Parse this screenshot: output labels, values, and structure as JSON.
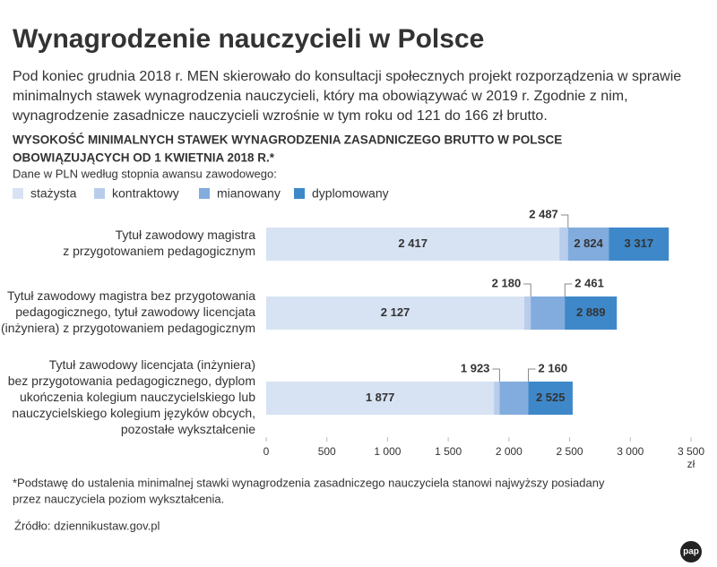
{
  "chart_data": {
    "type": "overlap-bar",
    "title": "Wynagrodzenie nauczycieli w Polsce",
    "intro": [
      "Pod koniec grudnia 2018 r. MEN skierowało do konsultacji społecznych projekt rozporządzenia w sprawie",
      "minimalnych stawek wynagrodzenia nauczycieli, który ma obowiązywać w 2019 r. Zgodnie z nim,",
      "wynagrodzenie zasadnicze nauczycieli wzrośnie w tym roku od 121 do 166 zł brutto."
    ],
    "subtitle": [
      "WYSOKOŚĆ MINIMALNYCH STAWEK WYNAGRODZENIA ZASADNICZEGO BRUTTO W POLSCE",
      "OBOWIĄZUJĄCYCH OD 1 KWIETNIA 2018 R.*"
    ],
    "note": "Dane w PLN według stopnia awansu zawodowego:",
    "categories": [
      [
        "Tytuł zawodowy magistra",
        "z przygotowaniem pedagogicznym"
      ],
      [
        "Tytuł zawodowy magistra bez przygotowania",
        "pedagogicznego, tytuł zawodowy licencjata",
        "(inżyniera) z przygotowaniem pedagogicznym"
      ],
      [
        "Tytuł zawodowy licencjata (inżyniera)",
        "bez przygotowania pedagogicznego, dyplom",
        "ukończenia kolegium nauczycielskiego lub",
        "nauczycielskiego kolegium języków obcych,",
        "pozostałe wykształcenie"
      ]
    ],
    "series": [
      {
        "name": "stażysta",
        "color": "#d7e3f3",
        "values": [
          2417,
          2127,
          1877
        ],
        "value_labels": [
          "2 417",
          "2 127",
          "1 877"
        ]
      },
      {
        "name": "kontraktowy",
        "color": "#b8cdeb",
        "values": [
          2487,
          2180,
          1923
        ],
        "value_labels": [
          "2 487",
          "2 180",
          "1 923"
        ]
      },
      {
        "name": "mianowany",
        "color": "#82acdd",
        "values": [
          2824,
          2461,
          2160
        ],
        "value_labels": [
          "2 824",
          "2 461",
          "2 160"
        ]
      },
      {
        "name": "dyplomowany",
        "color": "#3e88c9",
        "values": [
          3317,
          2889,
          2525
        ],
        "value_labels": [
          "3 317",
          "2 889",
          "2 525"
        ]
      }
    ],
    "xlim": [
      0,
      3500
    ],
    "xticks": [
      0,
      500,
      {
        "value": 1000,
        "label": "1 000"
      },
      {
        "value": 1500,
        "label": "1 500"
      },
      {
        "value": 2000,
        "label": "2 000"
      },
      {
        "value": 2500,
        "label": "2 500"
      },
      {
        "value": 3000,
        "label": "3 000"
      },
      {
        "value": 3500,
        "label": "3 500"
      }
    ],
    "x_unit": "zł",
    "footnote": [
      "*Podstawę do ustalenia minimalnej stawki wynagrodzenia zasadniczego nauczyciela stanowi najwyższy posiadany",
      "przez nauczyciela poziom wykształcenia."
    ],
    "source": "Źródło: dziennikustaw.gov.pl",
    "logo": "pap"
  }
}
